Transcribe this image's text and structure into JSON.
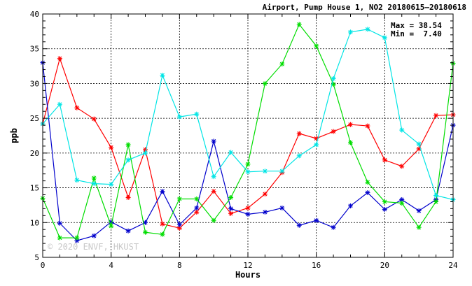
{
  "chart_data": {
    "type": "line",
    "title": "Airport, Pump House 1, NO2 20180615–20180618",
    "xlabel": "Hours",
    "ylabel": "ppb",
    "xlim": [
      0,
      24
    ],
    "ylim": [
      5,
      40
    ],
    "xticks": [
      0,
      4,
      8,
      12,
      16,
      20,
      24
    ],
    "yticks": [
      5,
      10,
      15,
      20,
      25,
      30,
      35,
      40
    ],
    "grid": true,
    "stats": {
      "max_text": "Max = 38.54",
      "min_text": "Min =  7.40"
    },
    "watermark": "© 2020  ENVF, HKUST",
    "x": [
      0,
      1,
      2,
      3,
      4,
      5,
      6,
      7,
      8,
      9,
      10,
      11,
      12,
      13,
      14,
      15,
      16,
      17,
      18,
      19,
      20,
      21,
      22,
      23,
      24
    ],
    "series": [
      {
        "color": "#ff0000",
        "values": [
          24.2,
          33.6,
          26.5,
          24.9,
          20.8,
          13.6,
          20.5,
          9.8,
          9.2,
          11.5,
          14.5,
          11.3,
          12.1,
          14.1,
          17.2,
          22.8,
          22.1,
          23.1,
          24.1,
          23.9,
          19.0,
          18.1,
          20.6,
          25.4,
          25.5
        ]
      },
      {
        "color": "#0000cc",
        "values": [
          33.0,
          9.9,
          7.4,
          8.1,
          10.1,
          8.8,
          10.0,
          14.5,
          9.7,
          12.1,
          21.7,
          12.0,
          11.2,
          11.5,
          12.1,
          9.6,
          10.3,
          9.3,
          12.4,
          14.3,
          11.9,
          13.3,
          11.7,
          13.3,
          24.0
        ]
      },
      {
        "color": "#00dd00",
        "values": [
          13.5,
          7.8,
          7.8,
          16.4,
          9.5,
          21.2,
          8.6,
          8.3,
          13.4,
          13.4,
          10.3,
          13.6,
          18.4,
          30.0,
          32.8,
          38.5,
          35.4,
          29.9,
          21.5,
          15.8,
          13.0,
          12.8,
          9.3,
          13.0,
          32.9
        ]
      },
      {
        "color": "#00e5e5",
        "values": [
          24.2,
          27.0,
          16.1,
          15.6,
          15.5,
          19.0,
          20.0,
          31.2,
          25.2,
          25.6,
          16.6,
          20.1,
          17.3,
          17.4,
          17.4,
          19.6,
          21.2,
          30.7,
          37.4,
          37.8,
          36.6,
          23.3,
          21.3,
          13.9,
          13.3
        ]
      }
    ]
  }
}
